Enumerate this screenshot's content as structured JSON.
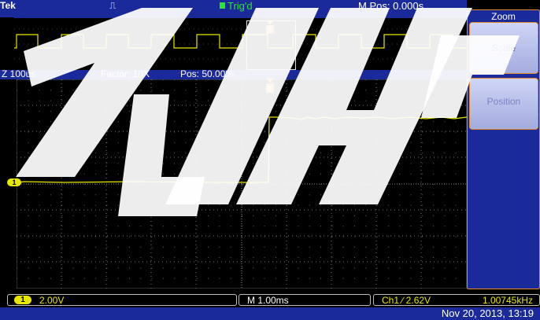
{
  "topbar": {
    "brand": "Tek",
    "acq_symbol": "⎍",
    "trigger_status": "Trig'd",
    "main_position": "M Pos: 0.000s"
  },
  "infobar": {
    "zoom": "Z 100us",
    "factor": "Factor: 10X",
    "position": "Pos: 50.00%"
  },
  "menu": {
    "title": "Zoom",
    "items": [
      {
        "label": "Scale"
      },
      {
        "label": "Position"
      }
    ]
  },
  "channel_marker": "1",
  "bottombar": {
    "channel_badge": "1",
    "volts_div": "2.00V",
    "time_div": "M 1.00ms",
    "trigger": "Ch1 ∕ 2.62V",
    "frequency": "1.00745kHz",
    "datetime": "Nov 20, 2013, 13:19"
  },
  "colors": {
    "bar_blue": "#1b2a9a",
    "trace_yellow": "#e8e800",
    "trigger_orange": "#e38a2a",
    "trig_green": "#29e629"
  }
}
